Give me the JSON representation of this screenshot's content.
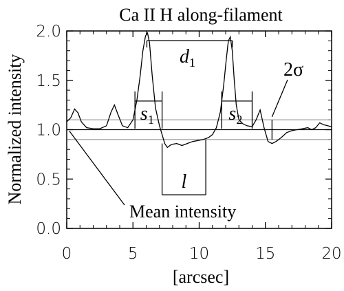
{
  "chart_data": {
    "type": "line",
    "title": "Ca II H along-filament",
    "xlabel": "[arcsec]",
    "ylabel": "Normalized intensity",
    "xlim": [
      0,
      20
    ],
    "ylim": [
      0.0,
      2.0
    ],
    "xticks": [
      "0",
      "5",
      "10",
      "15",
      "20"
    ],
    "yticks": [
      "0.0",
      "0.5",
      "1.0",
      "1.5",
      "2.0"
    ],
    "grid": false,
    "series": [
      {
        "x": [
          0,
          0.3,
          0.6,
          0.85,
          1.1,
          1.5,
          2.0,
          2.5,
          3.0,
          3.35,
          3.6,
          3.85,
          4.2,
          4.6,
          5.0,
          5.3,
          5.55,
          5.75,
          5.95,
          6.1,
          6.25,
          6.45,
          6.7,
          7.0,
          7.2,
          7.4,
          7.6,
          7.9,
          8.3,
          8.7,
          9.1,
          9.5,
          9.9,
          10.3,
          10.7,
          11.0,
          11.3,
          11.6,
          11.85,
          12.05,
          12.2,
          12.35,
          12.5,
          12.65,
          12.8,
          13.0,
          13.3,
          13.6,
          14.0,
          14.3,
          14.6,
          14.9,
          15.2,
          15.5,
          15.8,
          16.2,
          16.6,
          17.0,
          17.4,
          17.8,
          18.2,
          18.5,
          18.8,
          19.1,
          19.4,
          19.7,
          20.0
        ],
        "y": [
          1.08,
          1.12,
          1.21,
          1.17,
          1.08,
          1.02,
          1.01,
          1.01,
          1.04,
          1.18,
          1.25,
          1.16,
          1.04,
          1.02,
          1.1,
          1.3,
          1.55,
          1.8,
          1.95,
          1.98,
          1.88,
          1.55,
          1.22,
          1.04,
          0.95,
          0.86,
          0.82,
          0.85,
          0.86,
          0.84,
          0.86,
          0.88,
          0.89,
          0.9,
          0.92,
          0.95,
          1.02,
          1.18,
          1.45,
          1.72,
          1.9,
          1.94,
          1.8,
          1.5,
          1.25,
          1.1,
          1.06,
          1.04,
          1.03,
          1.1,
          1.2,
          1.02,
          0.88,
          0.86,
          0.88,
          0.92,
          0.97,
          0.99,
          1.0,
          1.01,
          1.02,
          1.0,
          1.02,
          1.07,
          1.05,
          1.04,
          1.03
        ]
      }
    ],
    "reference_lines": [
      {
        "y": 1.0,
        "style": "dark"
      },
      {
        "y": 1.1,
        "style": "gray"
      },
      {
        "y": 0.9,
        "style": "gray"
      }
    ],
    "annotations": {
      "d1": {
        "text_main": "d",
        "text_sub": "1",
        "x_start": 6.05,
        "x_end": 12.5,
        "y": 2.0
      },
      "s1": {
        "text_main": "s",
        "text_sub": "1",
        "x_start": 5.15,
        "x_end": 7.2,
        "y": 1.29
      },
      "s2": {
        "text_main": "s",
        "text_sub": "2",
        "x_start": 11.7,
        "x_end": 14.0,
        "y": 1.29
      },
      "l": {
        "text_main": "l",
        "x_start": 7.2,
        "x_end": 10.5,
        "y": 0.34
      },
      "sigma": {
        "text": "2σ",
        "x": 15.5
      },
      "mean": {
        "text": "Mean intensity",
        "x": 0.2,
        "y": 1.0
      }
    }
  }
}
